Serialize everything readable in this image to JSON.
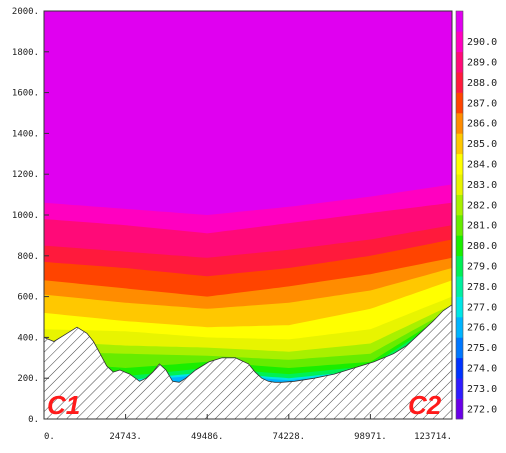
{
  "chart_data": {
    "type": "area",
    "title": "",
    "xlabel": "",
    "ylabel": "",
    "xlim": [
      0,
      123714
    ],
    "ylim": [
      0,
      2000
    ],
    "x_ticks": [
      "0.",
      "24743.",
      "49486.",
      "74228.",
      "98971.",
      "123714."
    ],
    "x_tick_values": [
      0,
      24743,
      49486,
      74228,
      98971,
      123714
    ],
    "y_ticks": [
      "0.",
      "200.",
      "400.",
      "600.",
      "800.",
      "1000.",
      "1200.",
      "1400.",
      "1600.",
      "1800.",
      "2000."
    ],
    "y_tick_values": [
      0,
      200,
      400,
      600,
      800,
      1000,
      1200,
      1400,
      1600,
      1800,
      2000
    ],
    "corner_labels": {
      "left": "C1",
      "right": "C2"
    },
    "colorbar": {
      "levels": [
        {
          "value": "272.0",
          "color": "#6a00e8"
        },
        {
          "value": "273.0",
          "color": "#2f1cff"
        },
        {
          "value": "274.0",
          "color": "#0033ff"
        },
        {
          "value": "275.0",
          "color": "#0077ff"
        },
        {
          "value": "276.0",
          "color": "#00b4ff"
        },
        {
          "value": "277.0",
          "color": "#00e6e6"
        },
        {
          "value": "278.0",
          "color": "#00f0a0"
        },
        {
          "value": "279.0",
          "color": "#00f055"
        },
        {
          "value": "280.0",
          "color": "#1aee00"
        },
        {
          "value": "281.0",
          "color": "#66ec00"
        },
        {
          "value": "282.0",
          "color": "#a8f000"
        },
        {
          "value": "283.0",
          "color": "#e8f400"
        },
        {
          "value": "284.0",
          "color": "#ffff00"
        },
        {
          "value": "285.0",
          "color": "#ffc800"
        },
        {
          "value": "286.0",
          "color": "#ff8c00"
        },
        {
          "value": "287.0",
          "color": "#ff4400"
        },
        {
          "value": "288.0",
          "color": "#ff1a3c"
        },
        {
          "value": "289.0",
          "color": "#ff0a78"
        },
        {
          "value": "290.0",
          "color": "#ff00c0"
        },
        {
          "value": "",
          "color": "#e000f0"
        }
      ]
    },
    "terrain": {
      "x": [
        0,
        3000,
        7000,
        10000,
        13000,
        15000,
        17000,
        19000,
        21000,
        23000,
        26000,
        29000,
        31000,
        33000,
        35000,
        37000,
        39000,
        41000,
        43000,
        46000,
        50000,
        54000,
        58000,
        62000,
        64000,
        66000,
        68000,
        70000,
        72000,
        76000,
        82000,
        88000,
        94000,
        100000,
        106000,
        110000,
        114000,
        118000,
        121000,
        123714
      ],
      "y": [
        400,
        380,
        420,
        450,
        420,
        380,
        320,
        260,
        230,
        240,
        220,
        185,
        200,
        230,
        270,
        240,
        185,
        180,
        200,
        240,
        280,
        300,
        300,
        270,
        230,
        200,
        185,
        180,
        180,
        185,
        200,
        220,
        250,
        280,
        320,
        360,
        420,
        480,
        530,
        560
      ]
    },
    "isotherms": [
      {
        "value": 290.0,
        "color": "#e000f0",
        "y": [
          2000,
          2000,
          2000,
          2000,
          2000,
          2000
        ]
      },
      {
        "value": 289.0,
        "color": "#ff00c0",
        "y": [
          1060,
          1030,
          1000,
          1040,
          1090,
          1150
        ]
      },
      {
        "value": 288.0,
        "color": "#ff0a78",
        "y": [
          980,
          950,
          910,
          960,
          1010,
          1060
        ]
      },
      {
        "value": 287.0,
        "color": "#ff1a3c",
        "y": [
          850,
          820,
          790,
          830,
          880,
          950
        ]
      },
      {
        "value": 286.0,
        "color": "#ff4400",
        "y": [
          770,
          740,
          700,
          740,
          800,
          880
        ]
      },
      {
        "value": 285.0,
        "color": "#ff8c00",
        "y": [
          680,
          640,
          600,
          650,
          710,
          790
        ]
      },
      {
        "value": 284.0,
        "color": "#ffc800",
        "y": [
          610,
          570,
          540,
          570,
          630,
          740
        ]
      },
      {
        "value": 283.0,
        "color": "#ffff00",
        "y": [
          520,
          480,
          450,
          460,
          540,
          680
        ]
      },
      {
        "value": 282.0,
        "color": "#e8f400",
        "y": [
          440,
          430,
          400,
          390,
          440,
          600
        ]
      },
      {
        "value": 281.0,
        "color": "#a8f000",
        "y": [
          380,
          360,
          350,
          330,
          370,
          560
        ]
      },
      {
        "value": 280.0,
        "color": "#66ec00",
        "y": [
          330,
          320,
          310,
          290,
          320,
          540
        ]
      },
      {
        "value": 279.0,
        "color": "#1aee00",
        "y": [
          280,
          250,
          280,
          250,
          280,
          530
        ]
      },
      {
        "value": 278.0,
        "color": "#00f055",
        "y": [
          240,
          210,
          250,
          220,
          260,
          520
        ]
      },
      {
        "value": 277.0,
        "color": "#00e6e6",
        "y": [
          220,
          190,
          230,
          200,
          240,
          510
        ]
      },
      {
        "value": 276.0,
        "color": "#00b4ff",
        "y": [
          210,
          180,
          220,
          190,
          230,
          500
        ]
      }
    ]
  }
}
